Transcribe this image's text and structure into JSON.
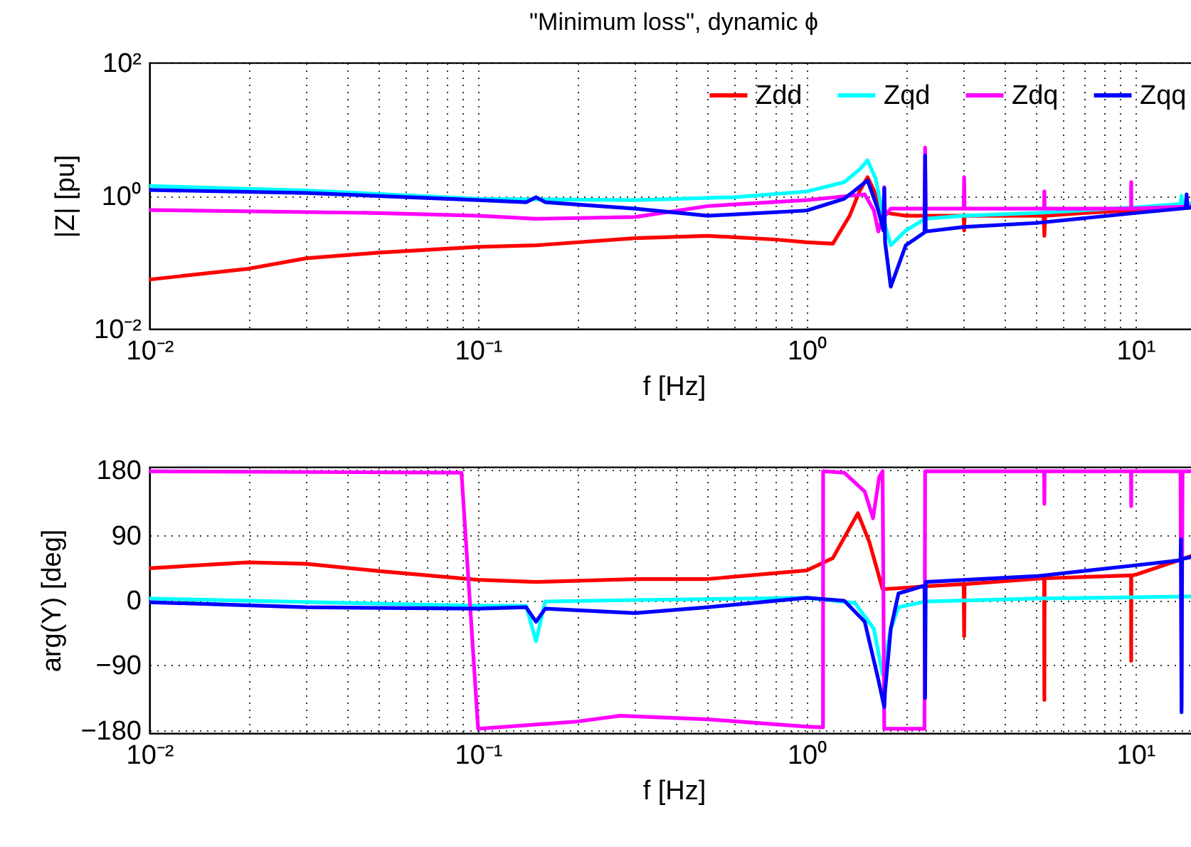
{
  "chart_data": [
    {
      "type": "line",
      "title": "\"Minimum loss\", dynamic ϕ",
      "xlabel": "f [Hz]",
      "ylabel": "|Z| [pu]",
      "log": "xy",
      "grid": true,
      "legend": "top right",
      "xlim": [
        0.01,
        15.5
      ],
      "xticks": [
        {
          "value": 0.01,
          "label": "10⁻²"
        },
        {
          "value": 0.02,
          "label": null
        },
        {
          "value": 0.03,
          "label": null
        },
        {
          "value": 0.04,
          "label": null
        },
        {
          "value": 0.05,
          "label": null
        },
        {
          "value": 0.06,
          "label": null
        },
        {
          "value": 0.07,
          "label": null
        },
        {
          "value": 0.08,
          "label": null
        },
        {
          "value": 0.09,
          "label": null
        },
        {
          "value": 0.1,
          "label": "10⁻¹"
        },
        {
          "value": 0.2,
          "label": null
        },
        {
          "value": 0.3,
          "label": null
        },
        {
          "value": 0.4,
          "label": null
        },
        {
          "value": 0.5,
          "label": null
        },
        {
          "value": 0.6,
          "label": null
        },
        {
          "value": 0.7,
          "label": null
        },
        {
          "value": 0.8,
          "label": null
        },
        {
          "value": 0.9,
          "label": null
        },
        {
          "value": 1,
          "label": "10⁰"
        },
        {
          "value": 2,
          "label": null
        },
        {
          "value": 3,
          "label": null
        },
        {
          "value": 4,
          "label": null
        },
        {
          "value": 5,
          "label": null
        },
        {
          "value": 6,
          "label": null
        },
        {
          "value": 7,
          "label": null
        },
        {
          "value": 8,
          "label": null
        },
        {
          "value": 9,
          "label": null
        },
        {
          "value": 10,
          "label": "10¹"
        }
      ],
      "ylim": [
        0.01,
        100
      ],
      "yticks": [
        {
          "value": 0.01,
          "label": "10⁻²"
        },
        {
          "value": 1,
          "label": "10⁰"
        },
        {
          "value": 100,
          "label": "10²"
        }
      ],
      "series": [
        {
          "name": "Zdd",
          "color": "#ff0000",
          "x": [
            0.01,
            0.02,
            0.03,
            0.05,
            0.1,
            0.15,
            0.3,
            0.5,
            0.8,
            1.0,
            1.2,
            1.35,
            1.45,
            1.53,
            1.6,
            1.67,
            1.75,
            2.0,
            2.29,
            3.0,
            3.01,
            3.02,
            4,
            5.25,
            5.28,
            5.31,
            7,
            9.7,
            10,
            15.5
          ],
          "values": [
            0.055,
            0.08,
            0.115,
            0.14,
            0.17,
            0.18,
            0.23,
            0.25,
            0.22,
            0.2,
            0.19,
            0.5,
            1.2,
            1.9,
            1.2,
            0.65,
            0.55,
            0.5,
            0.5,
            0.5,
            0.3,
            0.5,
            0.5,
            0.5,
            0.25,
            0.5,
            0.55,
            0.6,
            0.62,
            0.7
          ]
        },
        {
          "name": "Zqd",
          "color": "#00ffff",
          "x": [
            0.01,
            0.03,
            0.1,
            0.3,
            0.6,
            1.0,
            1.3,
            1.45,
            1.53,
            1.62,
            1.72,
            1.8,
            2.0,
            2.29,
            3,
            5,
            10,
            13.7,
            13.8,
            13.9,
            15.5
          ],
          "values": [
            1.4,
            1.2,
            0.9,
            0.86,
            0.95,
            1.16,
            1.6,
            2.5,
            3.4,
            1.8,
            0.4,
            0.18,
            0.3,
            0.45,
            0.5,
            0.55,
            0.67,
            0.75,
            1.0,
            0.75,
            0.78
          ]
        },
        {
          "name": "Zdq",
          "color": "#ff00ff",
          "x": [
            0.01,
            0.05,
            0.1,
            0.15,
            0.3,
            0.5,
            1.0,
            1.5,
            1.6,
            1.65,
            1.71,
            1.72,
            1.73,
            1.8,
            2.28,
            2.29,
            2.3,
            3.0,
            3.01,
            3.02,
            5.27,
            5.28,
            5.29,
            9.69,
            9.7,
            9.71,
            15.5
          ],
          "values": [
            0.61,
            0.55,
            0.5,
            0.45,
            0.48,
            0.7,
            0.86,
            1.05,
            0.6,
            0.29,
            0.5,
            1.35,
            0.5,
            0.64,
            0.64,
            5.3,
            0.64,
            0.64,
            1.9,
            0.64,
            0.64,
            1.16,
            0.64,
            0.64,
            1.6,
            0.64,
            0.7
          ]
        },
        {
          "name": "Zqq",
          "color": "#0000ff",
          "x": [
            0.01,
            0.03,
            0.1,
            0.14,
            0.15,
            0.16,
            0.3,
            0.5,
            1.0,
            1.3,
            1.53,
            1.65,
            1.71,
            1.72,
            1.73,
            1.8,
            2.0,
            2.28,
            2.29,
            2.3,
            3,
            5,
            10,
            14.2,
            14.3,
            14.4,
            15.5
          ],
          "values": [
            1.22,
            1.1,
            0.86,
            0.8,
            0.95,
            0.8,
            0.64,
            0.5,
            0.6,
            0.9,
            1.7,
            0.6,
            0.3,
            1.3,
            0.2,
            0.043,
            0.18,
            0.28,
            4.0,
            0.29,
            0.34,
            0.39,
            0.55,
            0.65,
            1.05,
            0.65,
            0.7
          ]
        }
      ]
    },
    {
      "type": "line",
      "xlabel": "f [Hz]",
      "ylabel": "arg(Y) [deg]",
      "log": "x",
      "grid": true,
      "xlim": [
        0.01,
        15.5
      ],
      "xticks": [
        {
          "value": 0.01,
          "label": "10⁻²"
        },
        {
          "value": 0.02,
          "label": null
        },
        {
          "value": 0.03,
          "label": null
        },
        {
          "value": 0.04,
          "label": null
        },
        {
          "value": 0.05,
          "label": null
        },
        {
          "value": 0.06,
          "label": null
        },
        {
          "value": 0.07,
          "label": null
        },
        {
          "value": 0.08,
          "label": null
        },
        {
          "value": 0.09,
          "label": null
        },
        {
          "value": 0.1,
          "label": "10⁻¹"
        },
        {
          "value": 0.2,
          "label": null
        },
        {
          "value": 0.3,
          "label": null
        },
        {
          "value": 0.4,
          "label": null
        },
        {
          "value": 0.5,
          "label": null
        },
        {
          "value": 0.6,
          "label": null
        },
        {
          "value": 0.7,
          "label": null
        },
        {
          "value": 0.8,
          "label": null
        },
        {
          "value": 0.9,
          "label": null
        },
        {
          "value": 1,
          "label": "10⁰"
        },
        {
          "value": 2,
          "label": null
        },
        {
          "value": 3,
          "label": null
        },
        {
          "value": 4,
          "label": null
        },
        {
          "value": 5,
          "label": null
        },
        {
          "value": 6,
          "label": null
        },
        {
          "value": 7,
          "label": null
        },
        {
          "value": 8,
          "label": null
        },
        {
          "value": 9,
          "label": null
        },
        {
          "value": 10,
          "label": "10¹"
        }
      ],
      "ylim": [
        -184,
        184
      ],
      "yticks": [
        {
          "value": -180,
          "label": "−180"
        },
        {
          "value": -90,
          "label": "−90"
        },
        0,
        90,
        180
      ],
      "series": [
        {
          "color": "#ff0000",
          "x": [
            0.01,
            0.02,
            0.03,
            0.05,
            0.1,
            0.15,
            0.3,
            0.5,
            1.0,
            1.2,
            1.43,
            1.55,
            1.7,
            2.0,
            2.3,
            3.0,
            3.01,
            3.02,
            5.27,
            5.28,
            5.29,
            9.69,
            9.7,
            9.71,
            10,
            15.5
          ],
          "values": [
            44,
            52,
            50,
            40,
            28,
            25,
            29,
            29,
            41,
            58,
            120,
            80,
            15,
            17,
            19,
            22,
            -50,
            22,
            30,
            -138,
            30,
            34,
            -84,
            34,
            35,
            64
          ]
        },
        {
          "color": "#00ffff",
          "x": [
            0.01,
            0.1,
            0.14,
            0.15,
            0.16,
            0.3,
            1.0,
            1.4,
            1.6,
            1.7,
            1.8,
            1.9,
            2.3,
            5,
            15.5
          ],
          "values": [
            2,
            -8,
            -8,
            -57,
            -2,
            0,
            3,
            -4,
            -40,
            -103,
            -40,
            -10,
            -2,
            2,
            5
          ]
        },
        {
          "color": "#ff00ff",
          "x": [
            0.01,
            0.089,
            0.1,
            0.2,
            0.27,
            0.5,
            1.0,
            1.12,
            1.121,
            1.3,
            1.5,
            1.59,
            1.66,
            1.7,
            1.72,
            1.78,
            2.28,
            2.29,
            5.27,
            5.28,
            5.29,
            9.69,
            9.7,
            9.71,
            13.7,
            13.8,
            13.9,
            15.5
          ],
          "values": [
            178,
            176,
            -178,
            -168,
            -160,
            -165,
            -175,
            -176,
            178,
            176,
            150,
            113,
            170,
            178,
            -178,
            -178,
            -178,
            178,
            178,
            133,
            178,
            178,
            130,
            178,
            178,
            -148,
            178,
            178
          ]
        },
        {
          "color": "#0000ff",
          "x": [
            0.01,
            0.03,
            0.1,
            0.14,
            0.15,
            0.16,
            0.3,
            0.5,
            1.0,
            1.3,
            1.5,
            1.65,
            1.72,
            1.73,
            1.8,
            1.9,
            2.28,
            2.29,
            2.3,
            5,
            10,
            13.7,
            13.75,
            13.8,
            13.85,
            15.5
          ],
          "values": [
            -3,
            -10,
            -12,
            -10,
            -30,
            -12,
            -18,
            -10,
            3,
            -1,
            -30,
            -110,
            -148,
            -126,
            -40,
            9,
            20,
            -135,
            25,
            33,
            48,
            55,
            84,
            -155,
            57,
            61
          ]
        }
      ]
    }
  ]
}
